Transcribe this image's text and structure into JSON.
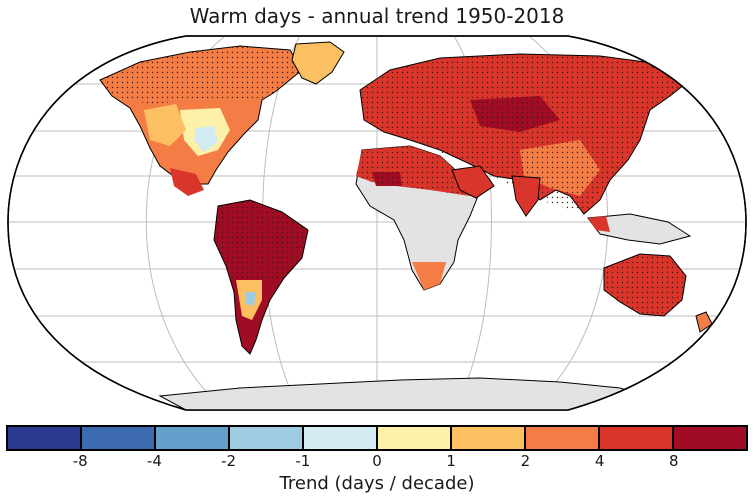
{
  "title": "Warm days - annual trend 1950-2018",
  "colorbar": {
    "label": "Trend (days / decade)",
    "colors": [
      "#2b3990",
      "#3c6bb0",
      "#63a0cc",
      "#9fcbe3",
      "#d2eaf2",
      "#fdf0a8",
      "#fcc062",
      "#f47d45",
      "#d9352b",
      "#a10c25"
    ],
    "ticks": [
      "-8",
      "-4",
      "-2",
      "-1",
      "0",
      "1",
      "2",
      "4",
      "8"
    ]
  },
  "map": {
    "projection": "robinson",
    "grid": true,
    "no_data_color": "#e3e3e3",
    "ocean_color": "#ffffff",
    "land_colors": {
      "very_strong": "#a10c25",
      "strong": "#d9352b",
      "moderate": "#f47d45",
      "weak": "#fcc062",
      "slight": "#fdf0a8",
      "neutral": "#d2eaf2",
      "negative": "#9fcbe3"
    },
    "stippling": "significant trend"
  }
}
